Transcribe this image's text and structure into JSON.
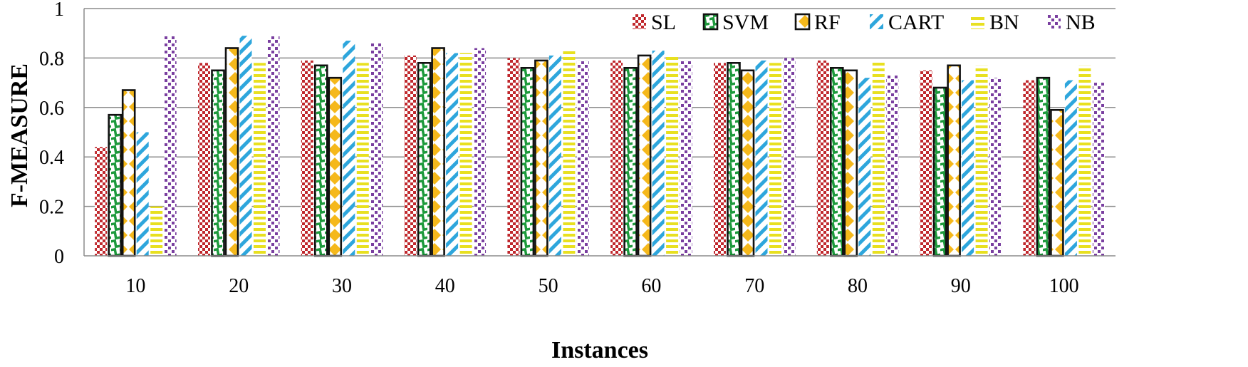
{
  "chart_data": {
    "type": "bar",
    "title": "",
    "xlabel": "Instances",
    "ylabel": "F-MEASURE",
    "ylim": [
      0,
      1
    ],
    "yticks": [
      0,
      0.2,
      0.4,
      0.6,
      0.8,
      1
    ],
    "ytick_labels": [
      "0",
      "0.2",
      "0.4",
      "0.6",
      "0.8",
      "1"
    ],
    "grid": true,
    "legend_position": "top-right",
    "categories": [
      "10",
      "20",
      "30",
      "40",
      "50",
      "60",
      "70",
      "80",
      "90",
      "100"
    ],
    "series": [
      {
        "name": "SL",
        "color": "#c0282d",
        "pattern": "checker",
        "values": [
          0.44,
          0.78,
          0.79,
          0.81,
          0.8,
          0.79,
          0.78,
          0.79,
          0.75,
          0.71
        ]
      },
      {
        "name": "SVM",
        "color": "#1d9a3c",
        "pattern": "zigzag",
        "values": [
          0.57,
          0.75,
          0.77,
          0.78,
          0.76,
          0.76,
          0.78,
          0.76,
          0.68,
          0.72
        ]
      },
      {
        "name": "RF",
        "color": "#f5b81b",
        "pattern": "diamond",
        "values": [
          0.67,
          0.84,
          0.72,
          0.84,
          0.79,
          0.81,
          0.75,
          0.75,
          0.77,
          0.59
        ]
      },
      {
        "name": "CART",
        "color": "#2ea6dc",
        "pattern": "diagonal",
        "values": [
          0.5,
          0.89,
          0.87,
          0.82,
          0.81,
          0.83,
          0.79,
          0.72,
          0.71,
          0.71
        ]
      },
      {
        "name": "BN",
        "color": "#e8e020",
        "pattern": "horizontal",
        "values": [
          0.2,
          0.78,
          0.78,
          0.82,
          0.83,
          0.81,
          0.78,
          0.79,
          0.77,
          0.77
        ]
      },
      {
        "name": "NB",
        "color": "#7a3fa0",
        "pattern": "dots",
        "values": [
          0.89,
          0.89,
          0.86,
          0.84,
          0.79,
          0.79,
          0.8,
          0.73,
          0.72,
          0.7
        ]
      }
    ]
  }
}
